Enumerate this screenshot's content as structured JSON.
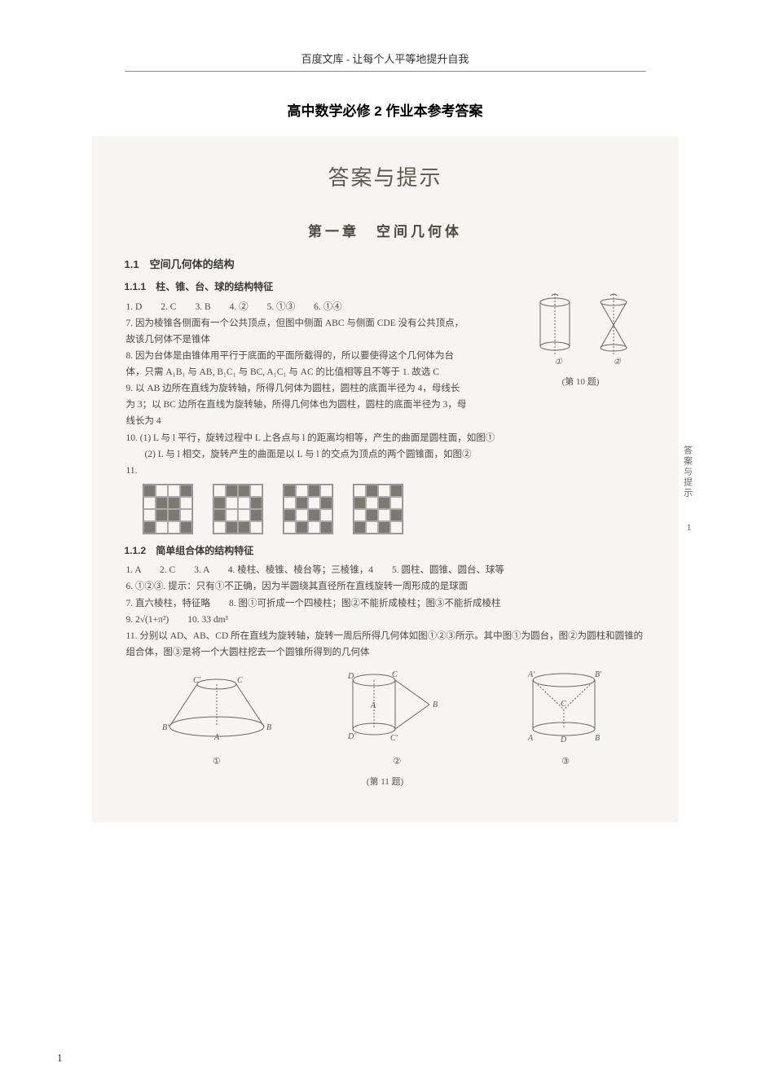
{
  "header": "百度文库 - 让每个人平等地提升自我",
  "doc_title": "高中数学必修 2 作业本参考答案",
  "scan": {
    "main_title": "答案与提示",
    "chapter": "第一章　空间几何体",
    "section_1_1": "1.1　空间几何体的结构",
    "sub_1_1_1": "1.1.1　柱、锥、台、球的结构特征",
    "a1": "1. D　　2. C　　3. B　　4. ②　　5. ①③　　6. ①④",
    "a7": "7. 因为棱锥各侧面有一个公共顶点，但图中侧面 ABC 与侧面 CDE 没有公共顶点，故该几何体不是锥体",
    "a8": "8. 因为台体是由锥体用平行于底面的平面所截得的，所以要使得这个几何体为台体，只需 A₁B₁ 与 AB, B₁C₁ 与 BC, A₁C₁ 与 AC 的比值相等且不等于 1. 故选 C",
    "a9": "9. 以 AB 边所在直线为旋转轴，所得几何体为圆柱，圆柱的底面半径为 4，母线长为 3；以 BC 边所在直线为旋转轴，所得几何体也为圆柱，圆柱的底面半径为 3，母线长为 4",
    "a10_1": "10. (1) L 与 l 平行，旋转过程中 L 上各点与 l 的距离均相等，产生的曲面是圆柱面，如图①",
    "a10_2": "　　(2) L 与 l 相交，旋转产生的曲面是以 L 与 l 的交点为顶点的两个圆锥面，如图②",
    "a11_label": "11.",
    "q10_circ1": "①",
    "q10_circ2": "②",
    "q10_caption": "(第 10 题)",
    "sub_1_1_2": "1.1.2　简单组合体的结构特征",
    "b1": "1. A　　2. C　　3. A　　4. 棱柱、棱锥、棱台等；三棱锥，4　　5. 圆柱、圆锥、圆台、球等",
    "b6": "6. ①②③. 提示：只有①不正确，因为半圆绕其直径所在直线旋转一周形成的是球面",
    "b7": "7. 直六棱柱，特征略　　8. 图①可折成一个四棱柱；图②不能折成棱柱；图③不能折成棱柱",
    "b9": "9. 2√(1+π²)　　10. 33 dm³",
    "b11": "11. 分别以 AD、AB、CD 所在直线为旋转轴，旋转一周后所得几何体如图①②③所示。其中图①为圆台，图②为圆柱和圆锥的组合体，图③是将一个大圆柱挖去一个圆锥所得到的几何体",
    "fig_circ1": "①",
    "fig_circ2": "②",
    "fig_circ3": "③",
    "fig_caption": "(第 11 题)",
    "side_tab": "答案与提示",
    "side_page": "1"
  },
  "footer_page": "1",
  "colors": {
    "page_bg": "#ffffff",
    "scan_bg": "#f6f5f1",
    "text_main": "#4a4a44",
    "text_dark": "#3a3a34",
    "grid_fill": "#7a7a72",
    "grid_border": "#aaaaaa"
  },
  "grids": {
    "g1": [
      1,
      0,
      0,
      1,
      0,
      1,
      1,
      0,
      0,
      1,
      1,
      0,
      1,
      0,
      0,
      1
    ],
    "g2": [
      0,
      1,
      1,
      0,
      1,
      0,
      0,
      1,
      1,
      0,
      0,
      1,
      0,
      1,
      1,
      0
    ],
    "g3": [
      1,
      0,
      1,
      0,
      0,
      1,
      0,
      1,
      1,
      0,
      1,
      0,
      0,
      1,
      0,
      1
    ],
    "g4": [
      0,
      1,
      0,
      1,
      1,
      0,
      1,
      0,
      0,
      1,
      0,
      1,
      1,
      0,
      1,
      0
    ]
  }
}
